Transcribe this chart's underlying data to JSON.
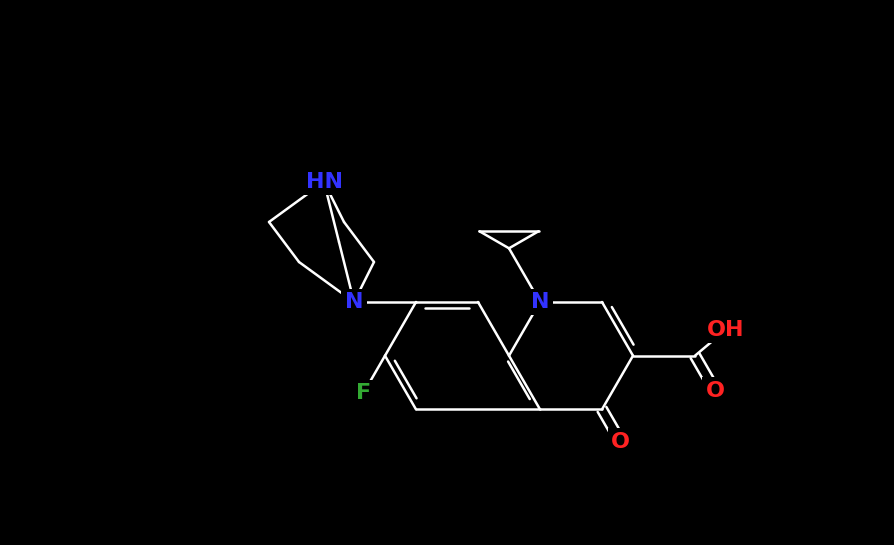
{
  "background_color": "#000000",
  "bond_color": "#ffffff",
  "N_color": "#3333ff",
  "F_color": "#33aa33",
  "O_color": "#ff2222",
  "bond_lw": 1.8,
  "fig_width": 8.94,
  "fig_height": 5.45,
  "dpi": 100,
  "xlim": [
    0,
    894
  ],
  "ylim": [
    0,
    545
  ]
}
